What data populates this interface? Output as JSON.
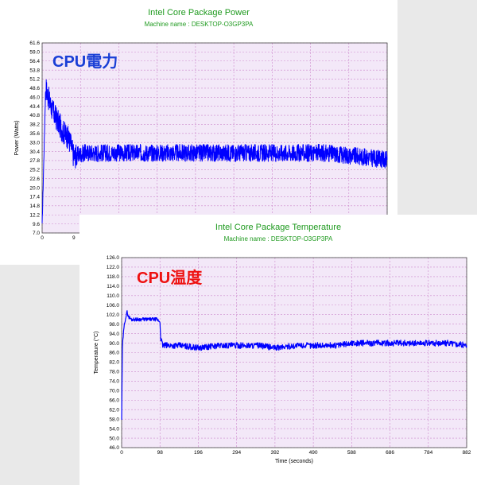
{
  "chart_data": [
    {
      "type": "line",
      "title": "Intel Core Package Power",
      "subtitle": "Machine name : DESKTOP-O3GP3PA",
      "ylabel": "Power (Watts)",
      "xlabel": "",
      "overlay_label": "CPU電力",
      "overlay_color": "#1a3fd6",
      "line_color": "#0000ff",
      "plot_bg": "#f3e8f8",
      "grid_color": "#cc88cc",
      "ylim": [
        7.0,
        61.6
      ],
      "yticks": [
        "61.6",
        "59.0",
        "56.4",
        "53.8",
        "51.2",
        "48.6",
        "46.0",
        "43.4",
        "40.8",
        "38.2",
        "35.6",
        "33.0",
        "30.4",
        "27.8",
        "25.2",
        "22.6",
        "20.0",
        "17.4",
        "14.8",
        "12.2",
        "9.6",
        "7.0"
      ],
      "xlim": [
        0,
        98
      ],
      "xticks_visible": [
        "0",
        "9"
      ],
      "series": [
        {
          "x": [
            0,
            1,
            2,
            3,
            4,
            5,
            6,
            7,
            8,
            9,
            12,
            20,
            30,
            40,
            50,
            60,
            70,
            80,
            90,
            98
          ],
          "y": [
            9,
            49,
            45,
            42,
            40,
            38,
            36,
            35,
            33,
            29,
            30,
            30,
            30,
            30,
            30,
            30,
            30,
            30,
            29,
            28
          ]
        }
      ]
    },
    {
      "type": "line",
      "title": "Intel Core Package Temperature",
      "subtitle": "Machine name : DESKTOP-O3GP3PA",
      "ylabel": "Temperature (°C)",
      "xlabel": "Time (seconds)",
      "overlay_label": "CPU温度",
      "overlay_color": "#ee1111",
      "line_color": "#0000ff",
      "plot_bg": "#f3e8f8",
      "grid_color": "#cc88cc",
      "ylim": [
        46.0,
        126.0
      ],
      "yticks": [
        "126.0",
        "122.0",
        "118.0",
        "114.0",
        "110.0",
        "106.0",
        "102.0",
        "98.0",
        "94.0",
        "90.0",
        "86.0",
        "82.0",
        "78.0",
        "74.0",
        "70.0",
        "66.0",
        "62.0",
        "58.0",
        "54.0",
        "50.0",
        "46.0"
      ],
      "xlim": [
        0,
        882
      ],
      "xticks": [
        "0",
        "98",
        "196",
        "294",
        "392",
        "490",
        "588",
        "686",
        "784",
        "882"
      ],
      "series": [
        {
          "x": [
            0,
            2,
            4,
            6,
            8,
            10,
            14,
            18,
            25,
            35,
            50,
            70,
            90,
            98,
            100,
            105,
            120,
            150,
            196,
            250,
            294,
            350,
            392,
            450,
            490,
            550,
            588,
            650,
            686,
            750,
            784,
            840,
            882
          ],
          "y": [
            58,
            88,
            93,
            96,
            99,
            101,
            103,
            101,
            100,
            100,
            100,
            100,
            100,
            99,
            92,
            89,
            89,
            89,
            88,
            89,
            89,
            89,
            88,
            89,
            89,
            89,
            90,
            90,
            90,
            90,
            90,
            90,
            89
          ]
        }
      ]
    }
  ]
}
